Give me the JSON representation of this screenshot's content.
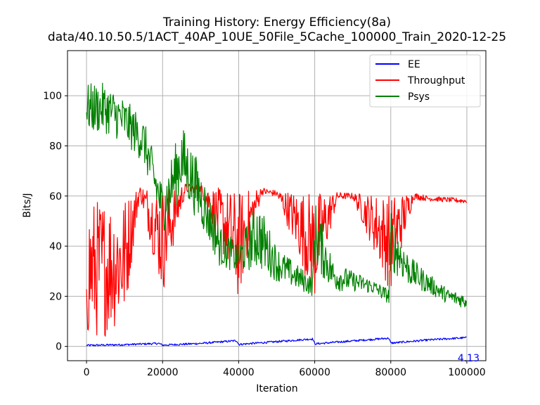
{
  "chart_data": {
    "type": "line",
    "title": "Training History: Energy Efficiency(8a)",
    "subtitle": "data/40.10.50.5/1ACT_40AP_10UE_50File_5Cache_100000_Train_2020-12-25",
    "xlabel": "Iteration",
    "ylabel": "Bits/J",
    "xlim": [
      -5000,
      105000
    ],
    "ylim": [
      -5.7,
      118
    ],
    "xticks": [
      0,
      20000,
      40000,
      60000,
      80000,
      100000
    ],
    "yticks": [
      0,
      20,
      40,
      60,
      80,
      100
    ],
    "grid": true,
    "legend_position": "top-right",
    "annotation": {
      "text": "4.13",
      "x": 100000,
      "y": -4,
      "color": "#0000ff"
    },
    "series": [
      {
        "name": "EE",
        "color": "#0000ff",
        "x": [
          0,
          10000,
          19000,
          20000,
          30000,
          39500,
          40000,
          50000,
          59500,
          60000,
          70000,
          79500,
          80000,
          90000,
          100000
        ],
        "y": [
          0.4,
          0.7,
          1.2,
          0.5,
          1.2,
          2.3,
          0.8,
          1.9,
          3.0,
          1.0,
          2.2,
          3.3,
          1.3,
          2.6,
          3.5
        ],
        "noise": 0.4
      },
      {
        "name": "Throughput",
        "color": "#ff0000",
        "x": [
          0,
          5000,
          10000,
          14000,
          20000,
          26000,
          30000,
          40000,
          46000,
          50000,
          60000,
          66000,
          70000,
          80000,
          86000,
          90000,
          100000
        ],
        "y": [
          30,
          32,
          35,
          62,
          42,
          63,
          63,
          40,
          62,
          61,
          40,
          60,
          60,
          41,
          60,
          59,
          58
        ],
        "noise": [
          28,
          28,
          25,
          2,
          22,
          2,
          1.5,
          22,
          1.5,
          1.2,
          22,
          1.5,
          1.2,
          20,
          1.5,
          1,
          1
        ]
      },
      {
        "name": "Psys",
        "color": "#008000",
        "x": [
          0,
          5000,
          10000,
          15000,
          20000,
          25000,
          30000,
          35000,
          40000,
          45000,
          50000,
          55000,
          59500,
          60000,
          65000,
          70000,
          75000,
          79500,
          80000,
          85000,
          90000,
          95000,
          100000
        ],
        "y": [
          95,
          95,
          90,
          82,
          55,
          75,
          60,
          40,
          35,
          45,
          33,
          28,
          24,
          45,
          28,
          26,
          24,
          20,
          42,
          30,
          25,
          20,
          18
        ],
        "noise": [
          10,
          10,
          9,
          9,
          10,
          14,
          12,
          8,
          6,
          14,
          7,
          5,
          4,
          14,
          6,
          4,
          3,
          3,
          12,
          6,
          4,
          3,
          3
        ]
      }
    ]
  }
}
